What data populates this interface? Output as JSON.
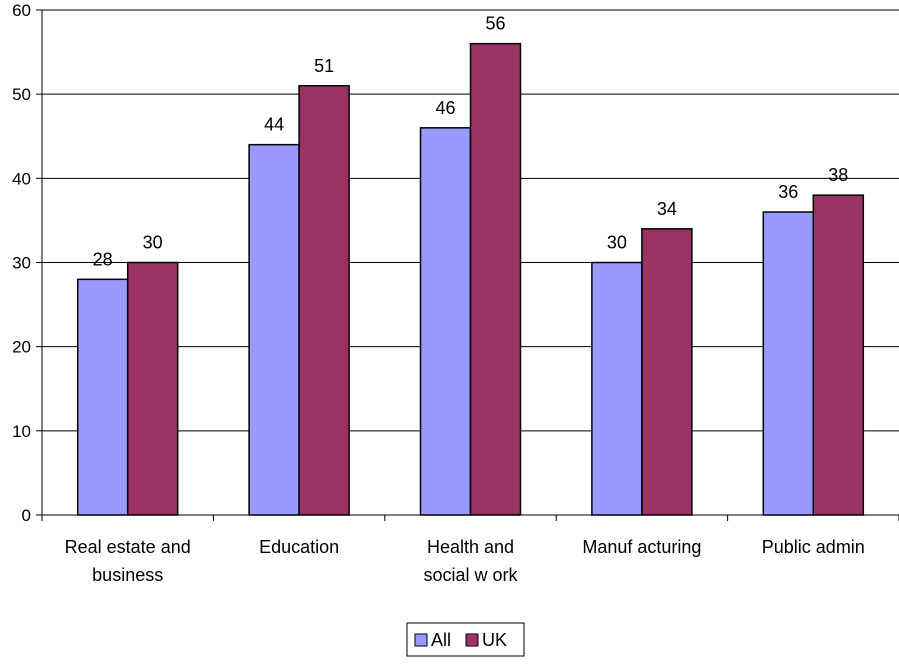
{
  "chart_data": {
    "type": "bar",
    "categories": [
      [
        "Real estate and",
        "business"
      ],
      [
        "Education"
      ],
      [
        "Health and",
        "social w ork"
      ],
      [
        "Manuf acturing"
      ],
      [
        "Public admin"
      ]
    ],
    "series": [
      {
        "name": "All",
        "color": "#9999ff",
        "values": [
          28,
          44,
          46,
          30,
          36
        ]
      },
      {
        "name": "UK",
        "color": "#993366",
        "values": [
          30,
          51,
          56,
          34,
          38
        ]
      }
    ],
    "ylim": [
      0,
      60
    ],
    "yticks": [
      0,
      10,
      20,
      30,
      40,
      50,
      60
    ],
    "grid": true,
    "legend": "bottom-center",
    "show_data_labels": true
  }
}
